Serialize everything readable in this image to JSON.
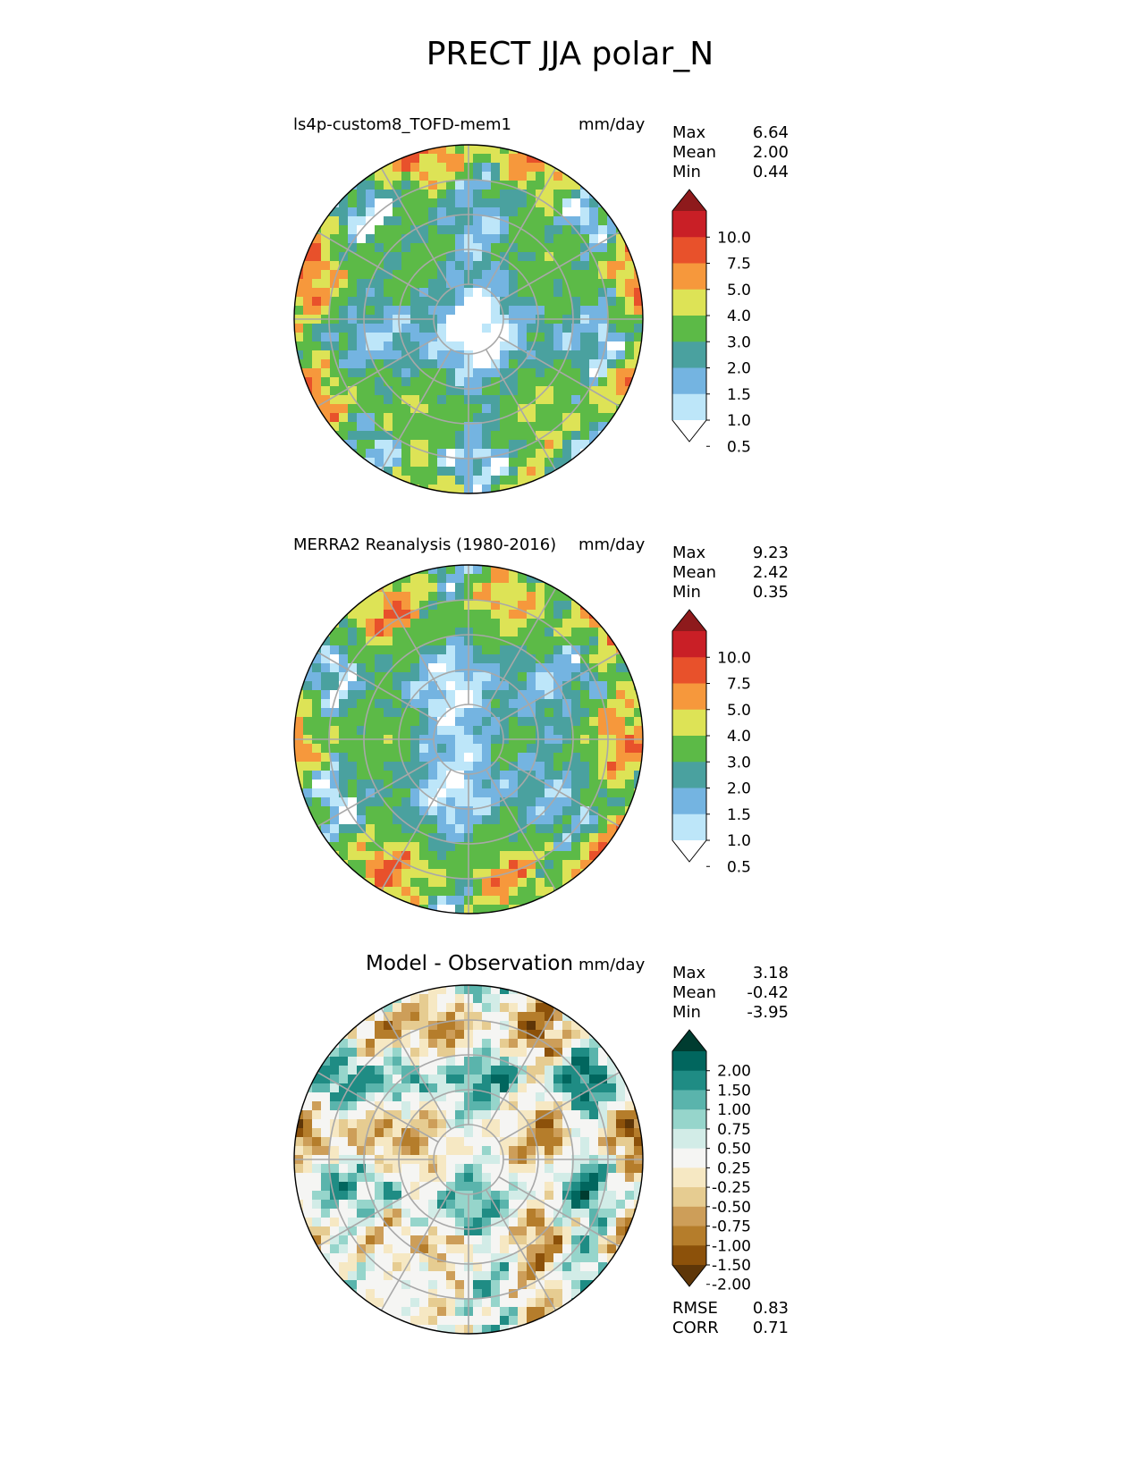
{
  "page_title": "PRECT JJA polar_N",
  "chart_data": [
    {
      "type": "heatmap",
      "projection": "north-polar-stereographic",
      "title": "ls4p-custom8_TOFD-mem1",
      "units": "mm/day",
      "stats": [
        {
          "label": "Max",
          "value": "6.64"
        },
        {
          "label": "Mean",
          "value": "2.00"
        },
        {
          "label": "Min",
          "value": "0.44"
        }
      ],
      "colorbar": {
        "levels": [
          "10.0",
          "7.5",
          "5.0",
          "4.0",
          "3.0",
          "2.0",
          "1.5",
          "1.0",
          "0.5"
        ],
        "colors": [
          "#8e1a1c",
          "#c91f26",
          "#e8512b",
          "#f6983c",
          "#dde356",
          "#5cba47",
          "#4aa19f",
          "#74b4e1",
          "#bde6f9",
          "#ffffff"
        ],
        "extend": "both"
      }
    },
    {
      "type": "heatmap",
      "projection": "north-polar-stereographic",
      "title": "MERRA2 Reanalysis (1980-2016)",
      "units": "mm/day",
      "stats": [
        {
          "label": "Max",
          "value": "9.23"
        },
        {
          "label": "Mean",
          "value": "2.42"
        },
        {
          "label": "Min",
          "value": "0.35"
        }
      ],
      "colorbar": {
        "levels": [
          "10.0",
          "7.5",
          "5.0",
          "4.0",
          "3.0",
          "2.0",
          "1.5",
          "1.0",
          "0.5"
        ],
        "colors": [
          "#8e1a1c",
          "#c91f26",
          "#e8512b",
          "#f6983c",
          "#dde356",
          "#5cba47",
          "#4aa19f",
          "#74b4e1",
          "#bde6f9",
          "#ffffff"
        ],
        "extend": "both"
      }
    },
    {
      "type": "heatmap",
      "projection": "north-polar-stereographic",
      "title": "Model - Observation",
      "units": "mm/day",
      "stats": [
        {
          "label": "Max",
          "value": "3.18"
        },
        {
          "label": "Mean",
          "value": "-0.42"
        },
        {
          "label": "Min",
          "value": "-3.95"
        }
      ],
      "metrics": [
        {
          "label": "RMSE",
          "value": "0.83"
        },
        {
          "label": "CORR",
          "value": "0.71"
        }
      ],
      "colorbar": {
        "levels": [
          "2.00",
          "1.50",
          "1.00",
          "0.75",
          "0.50",
          "0.25",
          "-0.25",
          "-0.50",
          "-0.75",
          "-1.00",
          "-1.50",
          "-2.00"
        ],
        "colors": [
          "#003c30",
          "#01665e",
          "#1f8c84",
          "#5ab4ac",
          "#96d5cb",
          "#d2ece7",
          "#f5f5f3",
          "#f6e8c3",
          "#e6cc91",
          "#cd9e59",
          "#b57d2b",
          "#8c510a",
          "#5e3608"
        ],
        "extend": "both"
      }
    }
  ]
}
